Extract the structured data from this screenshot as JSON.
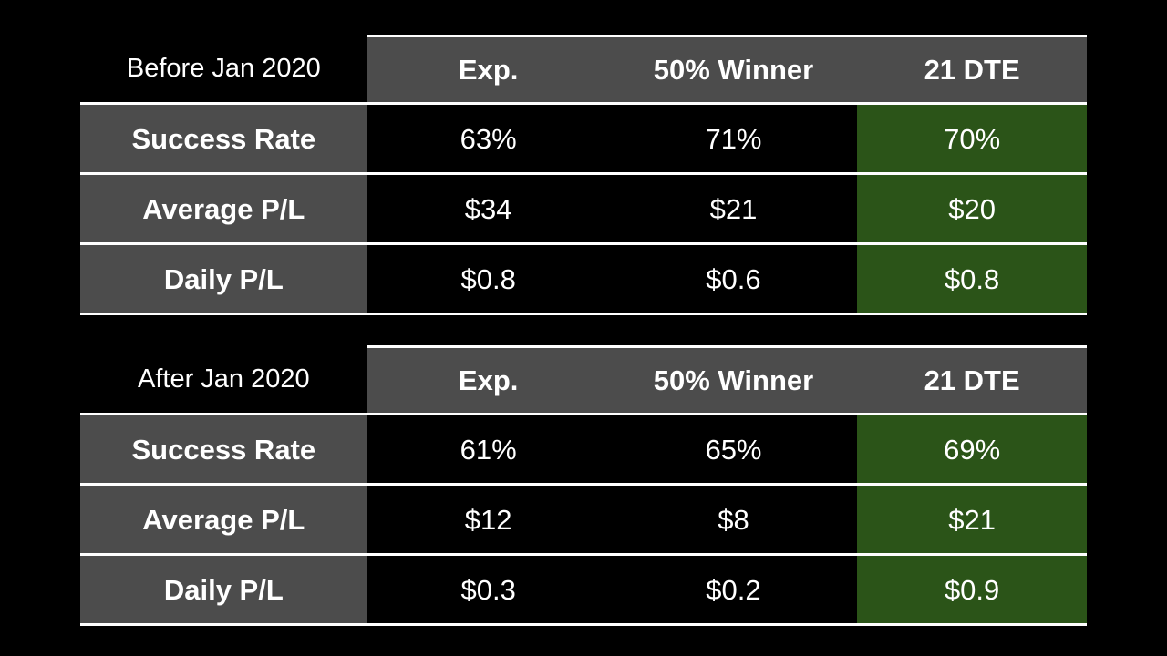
{
  "colors": {
    "background": "#000000",
    "header_gray": "#4c4c4c",
    "highlight_green": "#2b5418",
    "text": "#ffffff",
    "border": "#ffffff"
  },
  "chart_data": [
    {
      "type": "table",
      "title": "Before Jan 2020",
      "columns": [
        "Exp.",
        "50% Winner",
        "21 DTE"
      ],
      "highlighted_column": "21 DTE",
      "rows": [
        {
          "label": "Success Rate",
          "values": [
            "63%",
            "71%",
            "70%"
          ]
        },
        {
          "label": "Average P/L",
          "values": [
            "$34",
            "$21",
            "$20"
          ]
        },
        {
          "label": "Daily P/L",
          "values": [
            "$0.8",
            "$0.6",
            "$0.8"
          ]
        }
      ]
    },
    {
      "type": "table",
      "title": "After Jan 2020",
      "columns": [
        "Exp.",
        "50% Winner",
        "21 DTE"
      ],
      "highlighted_column": "21 DTE",
      "rows": [
        {
          "label": "Success Rate",
          "values": [
            "61%",
            "65%",
            "69%"
          ]
        },
        {
          "label": "Average P/L",
          "values": [
            "$12",
            "$8",
            "$21"
          ]
        },
        {
          "label": "Daily P/L",
          "values": [
            "$0.3",
            "$0.2",
            "$0.9"
          ]
        }
      ]
    }
  ]
}
